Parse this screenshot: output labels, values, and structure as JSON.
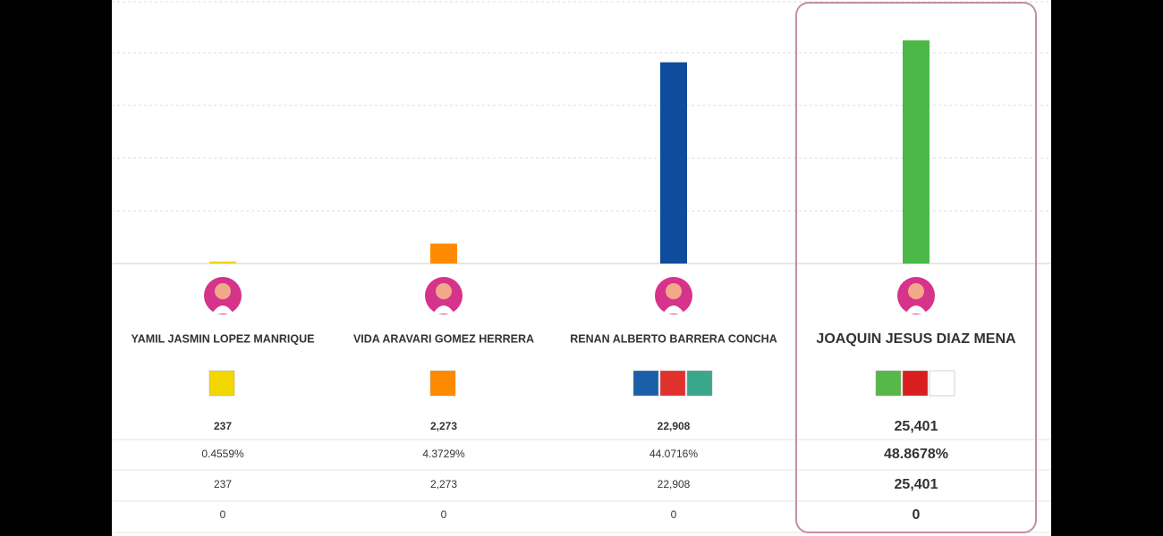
{
  "chart_data": {
    "type": "bar",
    "categories": [
      "YAMIL JASMIN LOPEZ MANRIQUE",
      "VIDA ARAVARI GOMEZ HERRERA",
      "RENAN ALBERTO BARRERA CONCHA",
      "JOAQUIN JESUS DIAZ MENA"
    ],
    "values": [
      237,
      2273,
      22908,
      25401
    ],
    "value_labels": [
      "237",
      "2,273",
      "22,908",
      "25,401"
    ],
    "colors": [
      "#f2d600",
      "#ff8a00",
      "#0f4c9c",
      "#4cb847"
    ],
    "ylim": [
      0,
      30000
    ],
    "yticks": [
      0,
      6000,
      12000,
      18000,
      24000,
      30000
    ],
    "grid": true
  },
  "table": {
    "rows": [
      [
        "0.4559%",
        "4.3729%",
        "44.0716%",
        "48.8678%"
      ],
      [
        "237",
        "2,273",
        "22,908",
        "25,401"
      ],
      [
        "0",
        "0",
        "0",
        "0"
      ]
    ]
  }
}
